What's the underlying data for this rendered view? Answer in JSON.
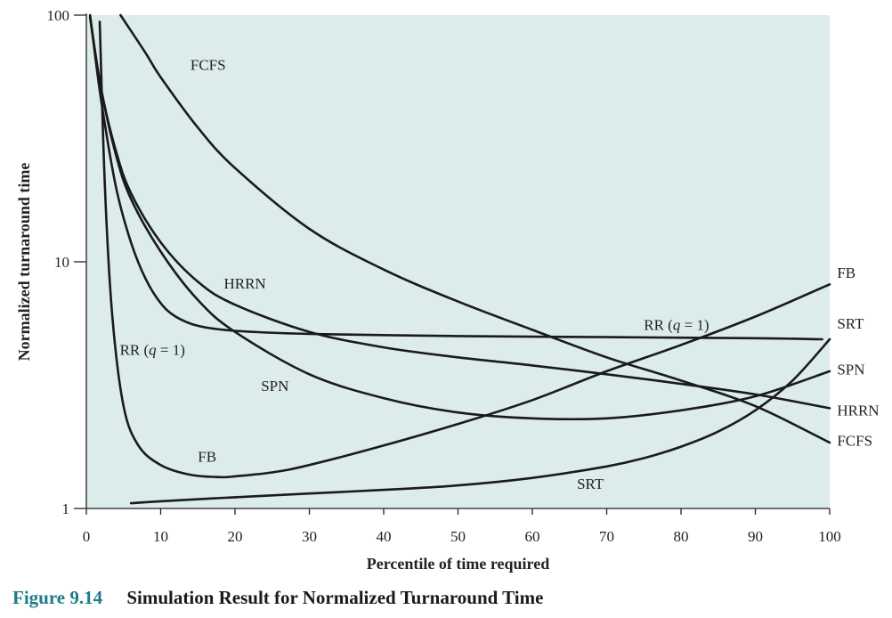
{
  "caption": {
    "number": "Figure 9.14",
    "title": "Simulation Result for Normalized Turnaround Time"
  },
  "colors": {
    "plot_background": "#dcecea",
    "line": "#1a1a1a",
    "caption_number": "#1f7a8c"
  },
  "chart_data": {
    "type": "line",
    "xlabel": "Percentile of time required",
    "ylabel": "Normalized turnaround time",
    "xlim": [
      0,
      100
    ],
    "ylim": [
      1,
      100
    ],
    "yscale": "log",
    "grid": false,
    "x_ticks": [
      0,
      10,
      20,
      30,
      40,
      50,
      60,
      70,
      80,
      90,
      100
    ],
    "y_ticks": [
      1,
      10,
      100
    ],
    "series": [
      {
        "name": "FCFS",
        "x": [
          4.6,
          8,
          10,
          15,
          20,
          30,
          40,
          50,
          60,
          70,
          80,
          90,
          100
        ],
        "y": [
          100,
          70,
          56,
          35,
          24,
          13.6,
          9.3,
          6.9,
          5.3,
          4.1,
          3.3,
          2.6,
          1.85
        ]
      },
      {
        "name": "HRRN",
        "x": [
          0.5,
          2,
          4,
          6,
          10,
          15,
          20,
          30,
          40,
          50,
          60,
          70,
          80,
          90,
          100
        ],
        "y": [
          98,
          50,
          28,
          19,
          12,
          8.3,
          6.7,
          5.2,
          4.5,
          4.1,
          3.8,
          3.5,
          3.2,
          2.9,
          2.55
        ]
      },
      {
        "name": "SPN",
        "x": [
          0.5,
          2,
          4,
          6,
          10,
          15,
          20,
          30,
          40,
          50,
          60,
          70,
          80,
          90,
          100
        ],
        "y": [
          98,
          50,
          27,
          18,
          11,
          7,
          5.2,
          3.5,
          2.8,
          2.45,
          2.32,
          2.32,
          2.5,
          2.85,
          3.6
        ]
      },
      {
        "name": "RR (q = 1)",
        "x": [
          0.5,
          2,
          4,
          6,
          8,
          10,
          12,
          15,
          20,
          30,
          50,
          70,
          90,
          99
        ],
        "y": [
          100,
          45,
          20,
          12,
          8.5,
          6.8,
          6,
          5.5,
          5.25,
          5.1,
          5.0,
          4.95,
          4.9,
          4.85
        ]
      },
      {
        "name": "FB",
        "x": [
          1.8,
          2.5,
          3.5,
          5,
          7,
          10,
          14,
          18,
          20,
          25,
          30,
          40,
          50,
          60,
          70,
          80,
          90,
          100
        ],
        "y": [
          94,
          20,
          6,
          2.6,
          1.8,
          1.5,
          1.37,
          1.34,
          1.35,
          1.4,
          1.5,
          1.8,
          2.2,
          2.75,
          3.6,
          4.6,
          6,
          8.1
        ]
      },
      {
        "name": "SRT",
        "x": [
          6,
          10,
          20,
          30,
          40,
          50,
          60,
          70,
          75,
          80,
          85,
          90,
          95,
          100
        ],
        "y": [
          1.05,
          1.07,
          1.11,
          1.15,
          1.19,
          1.24,
          1.33,
          1.48,
          1.6,
          1.78,
          2.05,
          2.5,
          3.3,
          4.85
        ]
      }
    ],
    "labels": [
      {
        "text": "FCFS",
        "x": 14,
        "y": 60
      },
      {
        "text": "HRRN",
        "x": 18.5,
        "y": 7.8
      },
      {
        "text": "RR (q = 1)",
        "x": 4.5,
        "y": 4.2
      },
      {
        "text": "SPN",
        "x": 23.5,
        "y": 3.0
      },
      {
        "text": "FB",
        "x": 15,
        "y": 1.55
      },
      {
        "text": "RR (q = 1)",
        "x": 75,
        "y": 5.3
      },
      {
        "text": "SRT",
        "x": 66,
        "y": 1.2
      },
      {
        "text": "FB",
        "x": 101,
        "y": 8.6
      },
      {
        "text": "SRT",
        "x": 101,
        "y": 5.35
      },
      {
        "text": "SPN",
        "x": 101,
        "y": 3.5
      },
      {
        "text": "HRRN",
        "x": 101,
        "y": 2.38
      },
      {
        "text": "FCFS",
        "x": 101,
        "y": 1.8
      }
    ]
  }
}
